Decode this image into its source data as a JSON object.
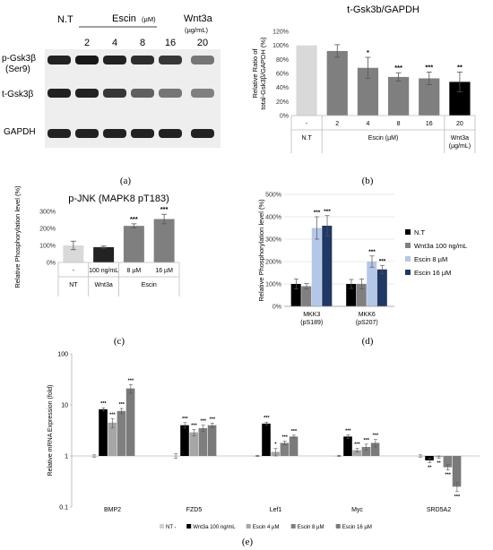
{
  "blot": {
    "lane_headers": {
      "nt": "N.T",
      "escin": "Escin",
      "escin_unit": "(µM)",
      "wnt": "Wnt3a",
      "wnt_unit": "(µg/mL)"
    },
    "lane_values": [
      "2",
      "4",
      "8",
      "16",
      "20"
    ],
    "row_labels": {
      "p_gsk": "p-Gsk3β",
      "ser9": "(Ser9)",
      "t_gsk": "t-Gsk3β",
      "gapdh": "GAPDH"
    },
    "band_intensity": {
      "p_gsk": [
        0.95,
        1.0,
        0.95,
        0.9,
        0.85,
        0.55
      ],
      "t_gsk": [
        0.95,
        0.95,
        0.85,
        0.65,
        0.55,
        0.5
      ],
      "gapdh": [
        0.95,
        0.95,
        0.95,
        0.95,
        0.95,
        0.95
      ]
    }
  },
  "panel_labels": {
    "a": "(a)",
    "b": "(b)",
    "c": "(c)",
    "d": "(d)",
    "e": "(e)"
  },
  "chart_data": [
    {
      "id": "b",
      "type": "bar",
      "title": "t-Gsk3b/GAPDH",
      "ylabel": "Relative Ratio of total-Gsk3β/GAPDH (%)",
      "ylabel_lines": [
        "Relative Ratio of",
        "total-Gsk3β/GAPDH (%)"
      ],
      "ylim": [
        0,
        120
      ],
      "yticks": [
        "0%",
        "20%",
        "40%",
        "60%",
        "80%",
        "100%",
        "120%"
      ],
      "categories": [
        "-",
        "2",
        "4",
        "8",
        "16",
        "20"
      ],
      "values": [
        100,
        92,
        68,
        55,
        53,
        48
      ],
      "errors": [
        0,
        9,
        15,
        6,
        9,
        14
      ],
      "significance": [
        "",
        "",
        "*",
        "***",
        "***",
        "**"
      ],
      "colors": [
        "#d9d9d9",
        "#7f7f7f",
        "#7f7f7f",
        "#7f7f7f",
        "#7f7f7f",
        "#000000"
      ],
      "groups": [
        {
          "label": "N.T",
          "from": 0,
          "to": 0
        },
        {
          "label": "Escin (µM)",
          "from": 1,
          "to": 4
        },
        {
          "label": "Wnt3a",
          "label2": "(µg/mL)",
          "from": 5,
          "to": 5
        }
      ],
      "grid": false
    },
    {
      "id": "c",
      "type": "bar",
      "title": "p-JNK (MAPK8 pT183)",
      "ylabel": "Relative Phosphorylation level (%)",
      "ylim": [
        0,
        300
      ],
      "yticks": [
        "0%",
        "100%",
        "200%",
        "300%"
      ],
      "categories": [
        "-",
        "100 ng/mL",
        "8 µM",
        "16 µM"
      ],
      "values": [
        100,
        90,
        215,
        255
      ],
      "errors": [
        25,
        6,
        12,
        28
      ],
      "significance": [
        "",
        "",
        "***",
        "***"
      ],
      "colors": [
        "#d9d9d9",
        "#222222",
        "#7f7f7f",
        "#7f7f7f"
      ],
      "groups": [
        {
          "label": "NT",
          "from": 0,
          "to": 0
        },
        {
          "label": "Wnt3a",
          "from": 1,
          "to": 1
        },
        {
          "label": "Escin",
          "from": 2,
          "to": 3
        }
      ],
      "grid": false
    },
    {
      "id": "d",
      "type": "bar",
      "title": "",
      "ylabel": "Relative Phosphorylation level (%)",
      "ylim": [
        0,
        500
      ],
      "yticks": [
        "0%",
        "100%",
        "200%",
        "300%",
        "400%",
        "500%"
      ],
      "categories": [
        [
          "MKK3",
          "(pS189)"
        ],
        [
          "MKK6",
          "(pS207)"
        ]
      ],
      "series": [
        {
          "name": "N.T",
          "color": "#000000",
          "values": [
            100,
            100
          ],
          "errors": [
            22,
            20
          ],
          "significance": [
            "",
            ""
          ]
        },
        {
          "name": "Wnt3a 100 ng/mL",
          "color": "#808080",
          "values": [
            90,
            100
          ],
          "errors": [
            12,
            22
          ],
          "significance": [
            "",
            ""
          ]
        },
        {
          "name": "Escin 8 µM",
          "color": "#b4c7e7",
          "values": [
            350,
            200
          ],
          "errors": [
            50,
            25
          ],
          "significance": [
            "***",
            "***"
          ]
        },
        {
          "name": "Escin 16 µM",
          "color": "#203864",
          "values": [
            360,
            165
          ],
          "errors": [
            45,
            18
          ],
          "significance": [
            "***",
            "***"
          ]
        }
      ],
      "legend": "right",
      "grid": true
    },
    {
      "id": "e",
      "type": "bar",
      "title": "",
      "ylabel": "Relative mRNA Expression (fold)",
      "yscale": "log",
      "ylim": [
        0.1,
        100
      ],
      "yticks": [
        "0.1",
        "1",
        "10",
        "100"
      ],
      "categories": [
        "BMP2",
        "FZD5",
        "Lef1",
        "Myc",
        "SRD5A2"
      ],
      "series": [
        {
          "name": "NT -",
          "color": "#d0d0d0",
          "values": [
            1,
            1,
            1,
            1,
            1
          ],
          "errors": [
            0.05,
            0.1,
            0.03,
            0.03,
            0.05
          ],
          "significance": [
            "",
            "",
            "",
            "",
            ""
          ]
        },
        {
          "name": "Wnt3a 100 ng/mL",
          "color": "#000000",
          "values": [
            8.2,
            4.0,
            4.3,
            2.4,
            0.82
          ],
          "errors": [
            0.6,
            0.5,
            0.3,
            0.2,
            0.08
          ],
          "significance": [
            "***",
            "***",
            "***",
            "***",
            "**"
          ]
        },
        {
          "name": "Escin 4 µM",
          "color": "#a6a6a6",
          "values": [
            4.5,
            2.9,
            1.2,
            1.3,
            0.95
          ],
          "errors": [
            0.9,
            0.4,
            0.2,
            0.1,
            0.05
          ],
          "significance": [
            "***",
            "***",
            "*",
            "***",
            "**"
          ]
        },
        {
          "name": "Escin 8 µM",
          "color": "#7f7f7f",
          "values": [
            7.6,
            3.5,
            1.8,
            1.5,
            0.6
          ],
          "errors": [
            0.9,
            0.5,
            0.15,
            0.2,
            0.07
          ],
          "significance": [
            "***",
            "***",
            "***",
            "***",
            "***"
          ]
        },
        {
          "name": "Escin 16 µM",
          "color": "#7a7a7a",
          "values": [
            21,
            4.0,
            2.4,
            1.8,
            0.25
          ],
          "errors": [
            4,
            0.4,
            0.15,
            0.3,
            0.05
          ],
          "significance": [
            "***",
            "***",
            "***",
            "***",
            "***"
          ]
        }
      ],
      "legend": "bottom",
      "grid": false
    }
  ]
}
